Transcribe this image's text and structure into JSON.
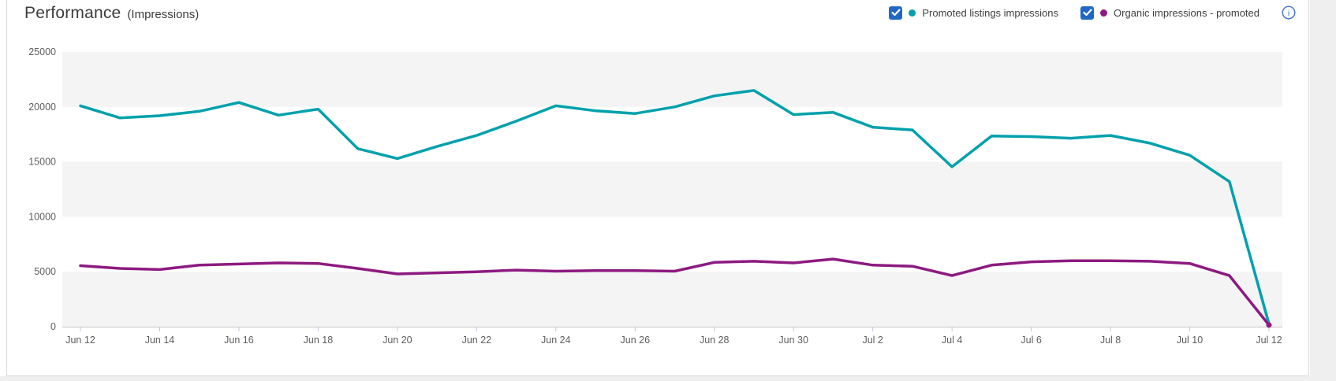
{
  "header": {
    "title": "Performance",
    "subtitle": "(Impressions)"
  },
  "legend": {
    "items": [
      {
        "label": "Promoted listings impressions",
        "color": "#00a1ac",
        "checked": true
      },
      {
        "label": "Organic impressions - promoted",
        "color": "#8d1a80",
        "checked": true
      }
    ],
    "info_icon": "info-circle",
    "checkbox_color": "#2168c4",
    "info_color": "#3e6fd8"
  },
  "colors": {
    "band_gray": "#f4f4f4",
    "axis_line": "#c7c7c7",
    "tick_mark": "#b9c9dc",
    "axis_text": "#5e5e5e",
    "page_strip": "#f0eff0",
    "card_border": "#d9d9d9"
  },
  "chart_data": {
    "type": "line",
    "title": "Performance (Impressions)",
    "xlabel": "",
    "ylabel": "",
    "ylim": [
      0,
      25000
    ],
    "y_ticks": [
      0,
      5000,
      10000,
      15000,
      20000,
      25000
    ],
    "grid": "alternating-horizontal-bands",
    "legend_position": "top-right",
    "x": [
      "Jun 12",
      "Jun 13",
      "Jun 14",
      "Jun 15",
      "Jun 16",
      "Jun 17",
      "Jun 18",
      "Jun 19",
      "Jun 20",
      "Jun 21",
      "Jun 22",
      "Jun 23",
      "Jun 24",
      "Jun 25",
      "Jun 26",
      "Jun 27",
      "Jun 28",
      "Jun 29",
      "Jun 30",
      "Jul 1",
      "Jul 2",
      "Jul 3",
      "Jul 4",
      "Jul 5",
      "Jul 6",
      "Jul 7",
      "Jul 8",
      "Jul 9",
      "Jul 10",
      "Jul 11",
      "Jul 12"
    ],
    "x_tick_labels": [
      "Jun 12",
      "Jun 14",
      "Jun 16",
      "Jun 18",
      "Jun 20",
      "Jun 22",
      "Jun 24",
      "Jun 26",
      "Jun 28",
      "Jun 30",
      "Jul 2",
      "Jul 4",
      "Jul 6",
      "Jul 8",
      "Jul 10",
      "Jul 12"
    ],
    "series": [
      {
        "name": "Promoted listings impressions",
        "color": "#00a1ac",
        "values": [
          20100,
          19000,
          19200,
          19600,
          20400,
          19250,
          19800,
          16200,
          15300,
          16400,
          17400,
          18700,
          20100,
          19650,
          19400,
          20000,
          21000,
          21500,
          19300,
          19500,
          18150,
          17900,
          14550,
          17350,
          17300,
          17150,
          17400,
          16700,
          15600,
          13200,
          250
        ]
      },
      {
        "name": "Organic impressions - promoted",
        "color": "#8d1a80",
        "values": [
          5550,
          5300,
          5200,
          5600,
          5700,
          5800,
          5750,
          5300,
          4800,
          4900,
          5000,
          5150,
          5050,
          5100,
          5100,
          5050,
          5850,
          5950,
          5800,
          6150,
          5600,
          5500,
          4650,
          5600,
          5900,
          6000,
          6000,
          5950,
          5750,
          4650,
          150
        ]
      }
    ]
  }
}
